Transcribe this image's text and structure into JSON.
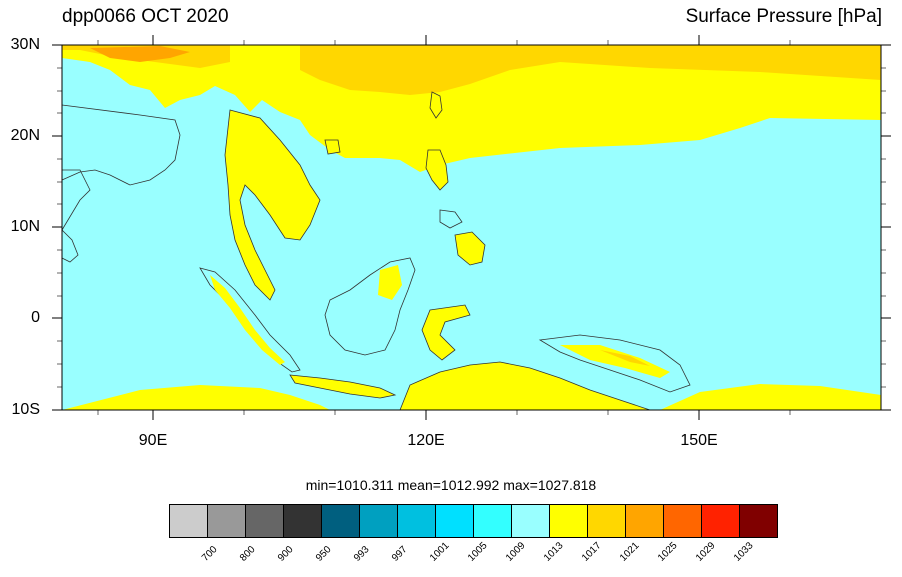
{
  "title_left": "dpp0066 OCT 2020",
  "title_right": "Surface Pressure [hPa]",
  "lat_labels": [
    "30N",
    "20N",
    "10N",
    "0",
    "10S"
  ],
  "lon_labels": [
    "90E",
    "120E",
    "150E"
  ],
  "stats": "min=1010.311  mean=1012.992  max=1027.818",
  "map": {
    "lon_range": [
      80,
      170
    ],
    "lat_range": [
      -10,
      30
    ],
    "colors": {
      "ocean": "#99ffff",
      "land_low": "#ffff00",
      "land_mid": "#ffd700",
      "land_high": "#ffa500",
      "peak": "#ff6600"
    }
  },
  "colorbar": {
    "colors": [
      "#cccccc",
      "#999999",
      "#666666",
      "#333333",
      "#005f7f",
      "#00a0c0",
      "#00c0e0",
      "#00e0ff",
      "#33ffff",
      "#99ffff",
      "#ffff00",
      "#ffd700",
      "#ffa500",
      "#ff6600",
      "#ff2200",
      "#800000"
    ],
    "labels": [
      "700",
      "800",
      "900",
      "950",
      "993",
      "997",
      "1001",
      "1005",
      "1009",
      "1013",
      "1017",
      "1021",
      "1025",
      "1029",
      "1033"
    ]
  }
}
